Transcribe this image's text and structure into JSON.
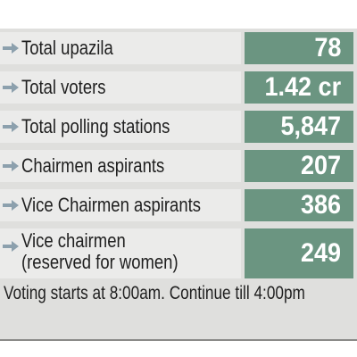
{
  "stats": [
    {
      "label": "Total upazila",
      "value": "78"
    },
    {
      "label": "Total voters",
      "value": "1.42 cr"
    },
    {
      "label": "Total polling stations",
      "value": "5,847"
    },
    {
      "label": "Chairmen aspirants",
      "value": "207"
    },
    {
      "label": "Vice Chairmen aspirants",
      "value": "386"
    },
    {
      "label": "Vice chairmen",
      "label_line2": "(reserved for women)",
      "value": "249"
    }
  ],
  "footer_note": "Voting starts at 8:00am. Continue till 4:00pm",
  "colors": {
    "value_background": "#6b9581",
    "label_background": "#ebebea",
    "panel_background": "#dfdfdd",
    "arrow": "#8ca0ad"
  },
  "icons": {
    "row_marker": "arrow-right-icon"
  }
}
